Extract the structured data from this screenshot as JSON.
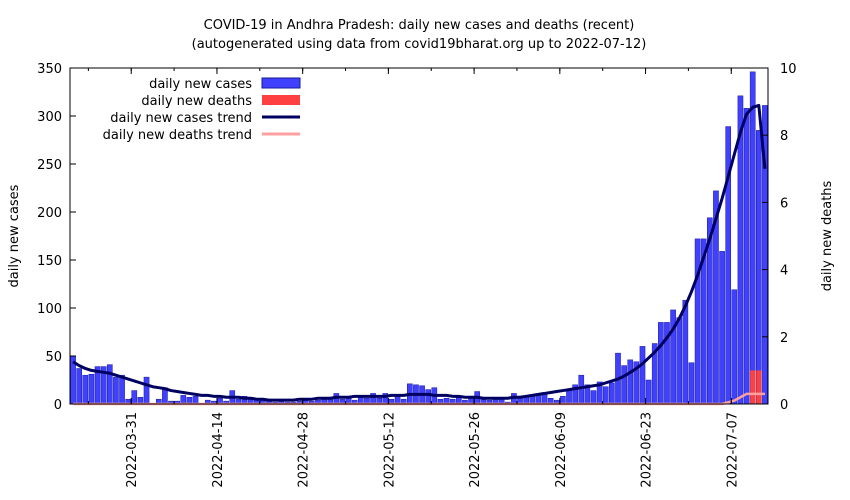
{
  "chart_data": {
    "type": "bar",
    "title": "COVID-19 in Andhra Pradesh: daily new cases and deaths (recent)",
    "subtitle": "(autogenerated using data from covid19bharat.org up to 2022-07-12)",
    "ylabel_left": "daily new cases",
    "ylabel_right": "daily new deaths",
    "ylim_left": [
      0,
      350
    ],
    "ylim_right": [
      0,
      10
    ],
    "yticks_left": [
      "0",
      "50",
      "100",
      "150",
      "200",
      "250",
      "300",
      "350"
    ],
    "yticks_right": [
      "0",
      "2",
      "4",
      "6",
      "8",
      "10"
    ],
    "start_date": "2022-03-21",
    "xtick_labels": [
      {
        "label": "2022-03-31",
        "day_index": 10
      },
      {
        "label": "2022-04-14",
        "day_index": 24
      },
      {
        "label": "2022-04-28",
        "day_index": 38
      },
      {
        "label": "2022-05-12",
        "day_index": 52
      },
      {
        "label": "2022-05-26",
        "day_index": 66
      },
      {
        "label": "2022-06-09",
        "day_index": 80
      },
      {
        "label": "2022-06-23",
        "day_index": 94
      },
      {
        "label": "2022-07-07",
        "day_index": 108
      }
    ],
    "legend": {
      "cases": "daily new cases",
      "deaths": "daily new deaths",
      "cases_trend": "daily new cases trend",
      "deaths_trend": "daily new deaths trend"
    },
    "colors": {
      "cases": "#4040ff",
      "cases_stroke": "#1a1a99",
      "deaths": "#ff4040",
      "cases_trend": "#000060",
      "deaths_trend": "#ffa0a0"
    },
    "daily_cases": [
      50,
      37,
      30,
      31,
      39,
      39,
      41,
      28,
      30,
      5,
      14,
      7,
      28,
      0,
      5,
      17,
      3,
      3,
      9,
      7,
      8,
      0,
      4,
      3,
      6,
      3,
      14,
      5,
      8,
      6,
      5,
      4,
      3,
      2,
      3,
      2,
      2,
      3,
      4,
      3,
      4,
      7,
      6,
      11,
      5,
      8,
      4,
      7,
      6,
      11,
      6,
      11,
      5,
      9,
      5,
      21,
      20,
      19,
      15,
      17,
      5,
      6,
      5,
      7,
      4,
      6,
      13,
      5,
      4,
      6,
      5,
      2,
      11,
      6,
      7,
      9,
      10,
      12,
      6,
      4,
      8,
      14,
      20,
      30,
      20,
      14,
      23,
      18,
      22,
      53,
      40,
      46,
      44,
      60,
      25,
      63,
      85,
      85,
      98,
      90,
      108,
      43,
      172,
      172,
      194,
      222,
      159,
      289,
      119,
      321,
      308,
      346,
      285,
      311
    ],
    "daily_deaths": [
      0,
      0,
      0,
      0,
      0,
      0,
      0,
      0,
      0,
      0,
      0,
      0,
      0,
      0,
      0,
      0,
      0,
      0,
      0,
      0,
      0,
      0,
      0,
      0,
      0,
      0,
      0,
      0,
      0,
      0,
      0,
      0,
      0,
      0,
      0,
      0,
      0,
      0,
      0,
      0,
      0,
      0,
      0,
      0,
      0,
      0,
      0,
      0,
      0,
      0,
      0,
      0,
      0,
      0,
      0,
      0,
      0,
      0,
      0,
      0,
      0,
      0,
      0,
      0,
      0,
      0,
      0,
      0,
      0,
      0,
      0,
      0,
      0,
      0,
      0,
      0,
      0,
      0,
      0,
      0,
      0,
      0,
      0,
      0,
      0,
      0,
      0,
      0,
      0,
      0,
      0,
      0,
      0,
      0,
      0,
      0,
      0,
      0,
      0,
      0,
      0,
      0,
      0,
      0,
      0,
      0,
      0,
      0,
      0,
      0,
      0,
      1,
      1,
      0
    ],
    "cases_trend": [
      44,
      40,
      37,
      35,
      34,
      33,
      32,
      30,
      28,
      26,
      24,
      22,
      20,
      18,
      17,
      16,
      14,
      13,
      12,
      11,
      10,
      9,
      9,
      8,
      8,
      7,
      7,
      7,
      6,
      6,
      5,
      5,
      4,
      4,
      4,
      4,
      4,
      5,
      5,
      5,
      6,
      6,
      6,
      7,
      7,
      7,
      8,
      8,
      8,
      8,
      8,
      8,
      9,
      9,
      9,
      10,
      10,
      10,
      10,
      9,
      9,
      9,
      8,
      8,
      7,
      7,
      7,
      6,
      6,
      6,
      6,
      6,
      7,
      7,
      8,
      9,
      10,
      11,
      12,
      13,
      14,
      15,
      16,
      17,
      18,
      19,
      20,
      22,
      24,
      26,
      29,
      33,
      37,
      42,
      48,
      54,
      61,
      69,
      78,
      89,
      102,
      117,
      134,
      153,
      172,
      193,
      214,
      237,
      260,
      283,
      302,
      309,
      311,
      245
    ],
    "deaths_trend": [
      0,
      0,
      0,
      0,
      0,
      0,
      0,
      0,
      0,
      0,
      0,
      0,
      0,
      0,
      0,
      0,
      0,
      0,
      0,
      0,
      0,
      0,
      0,
      0,
      0,
      0,
      0,
      0,
      0,
      0,
      0,
      0,
      0,
      0,
      0,
      0,
      0,
      0,
      0,
      0,
      0,
      0,
      0,
      0,
      0,
      0,
      0,
      0,
      0,
      0,
      0,
      0,
      0,
      0,
      0,
      0,
      0,
      0,
      0,
      0,
      0,
      0,
      0,
      0,
      0,
      0,
      0,
      0,
      0,
      0,
      0,
      0,
      0,
      0,
      0,
      0,
      0,
      0,
      0,
      0,
      0,
      0,
      0,
      0,
      0,
      0,
      0,
      0,
      0,
      0,
      0,
      0,
      0,
      0,
      0,
      0,
      0,
      0,
      0,
      0,
      0,
      0,
      0,
      0,
      0,
      0,
      0,
      0.05,
      0.1,
      0.2,
      0.3,
      0.3,
      0.3,
      0.3
    ]
  }
}
